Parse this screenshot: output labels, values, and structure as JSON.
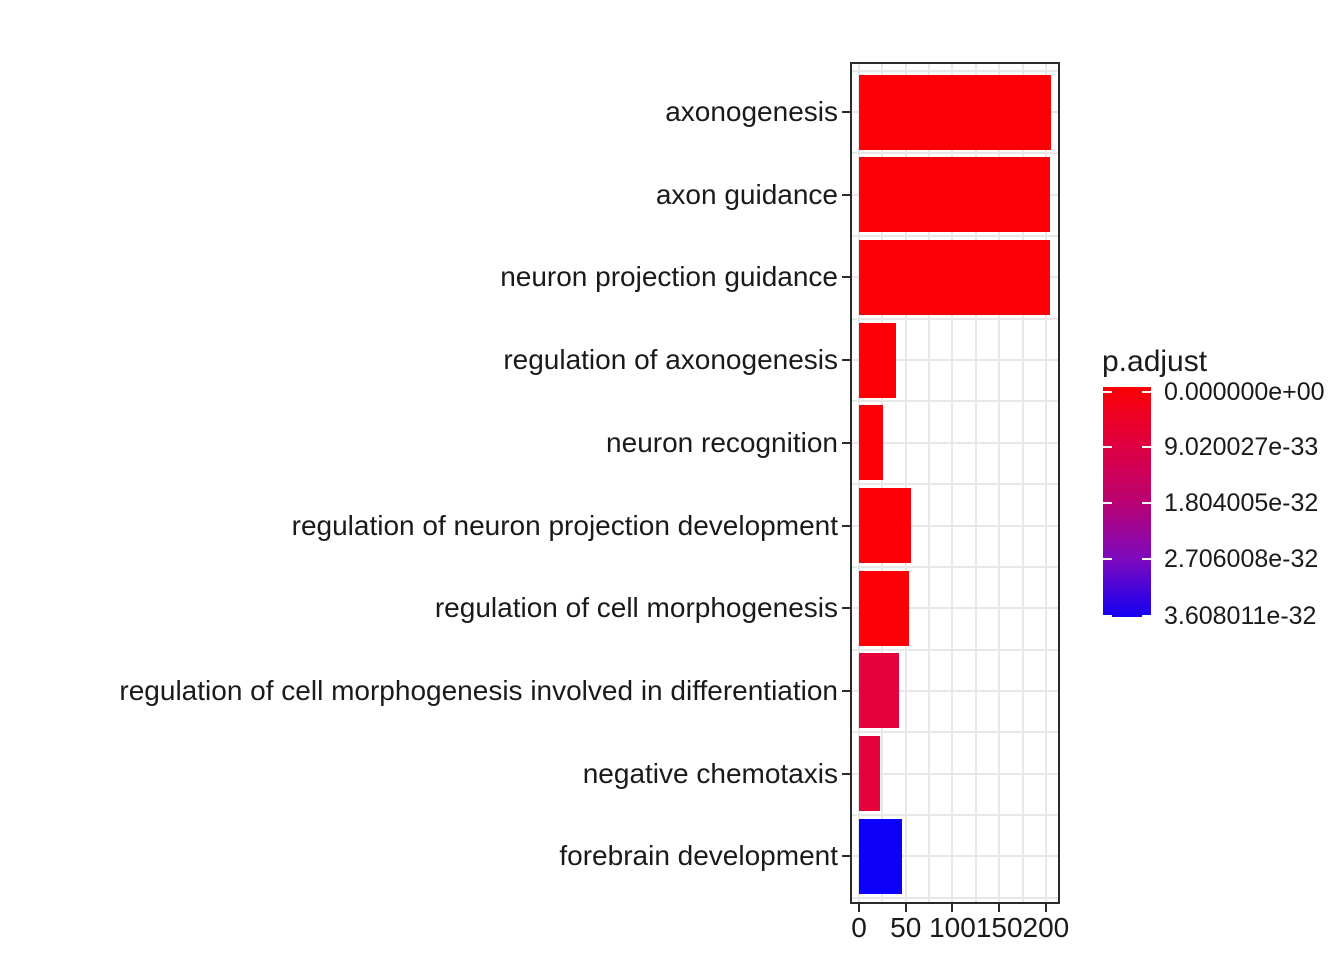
{
  "chart_data": {
    "type": "bar",
    "orientation": "horizontal",
    "title": "",
    "xlabel": "",
    "ylabel": "",
    "background": "#FFFFFF",
    "grid": true,
    "panel_border": true,
    "categories": [
      "axonogenesis",
      "axon guidance",
      "neuron projection guidance",
      "regulation of axonogenesis",
      "neuron recognition",
      "regulation of neuron projection development",
      "regulation of cell morphogenesis",
      "regulation of cell morphogenesis involved in differentiation",
      "negative chemotaxis",
      "forebrain development"
    ],
    "values": [
      205,
      204,
      204,
      40,
      26,
      56,
      53,
      43,
      23,
      46
    ],
    "bar_colors": [
      "#FB0005",
      "#FB0005",
      "#FB0005",
      "#FB0005",
      "#FB0005",
      "#FB0005",
      "#FB0005",
      "#E4013C",
      "#E4013C",
      "#0C00F8"
    ],
    "x_axis": {
      "major_ticks": [
        0,
        50,
        100,
        150,
        200
      ],
      "minor_ticks": [
        25,
        75,
        125,
        175
      ],
      "range": [
        0,
        214
      ]
    },
    "legend": {
      "title": "p.adjust",
      "position": "right",
      "tick_labels": [
        "0.000000e+00",
        "9.020027e-33",
        "1.804005e-32",
        "2.706008e-32",
        "3.608011e-32"
      ],
      "gradient_stops": [
        "#FB0004",
        "#E00040",
        "#BA0272",
        "#7D09BE",
        "#1400F2"
      ]
    },
    "colors": {
      "grid": "#E8E8E8",
      "panel_border": "#2B2B2B",
      "axis_text": "#1A1A1A",
      "tick_marks": "#2B2B2B"
    }
  }
}
